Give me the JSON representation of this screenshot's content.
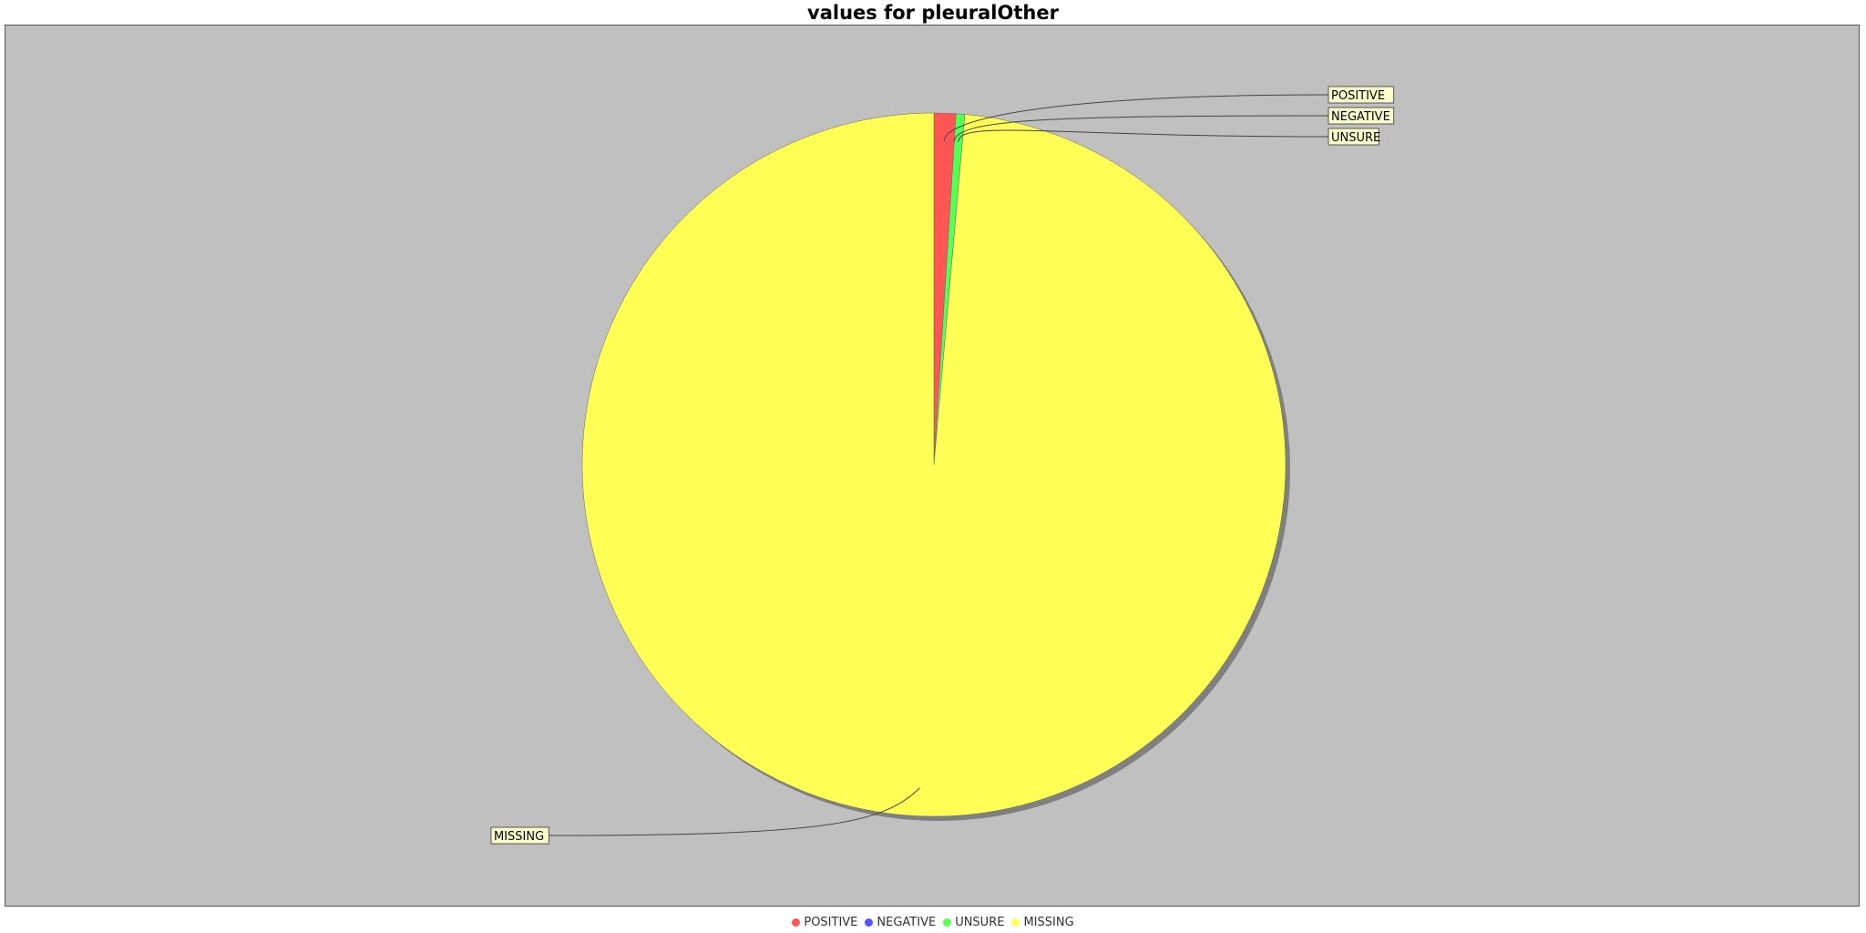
{
  "chart_data": {
    "type": "pie",
    "title": "values for pleuralOther",
    "slices": [
      {
        "label": "POSITIVE",
        "value": 1.0,
        "color": "#ff5555"
      },
      {
        "label": "NEGATIVE",
        "value": 0.0,
        "color": "#5555ff"
      },
      {
        "label": "UNSURE",
        "value": 0.4,
        "color": "#55ff55"
      },
      {
        "label": "MISSING",
        "value": 98.6,
        "color": "#ffff55"
      }
    ],
    "legend_position": "bottom",
    "background_color": "#c0c0c0",
    "label_box_color": "#ffffcc"
  }
}
